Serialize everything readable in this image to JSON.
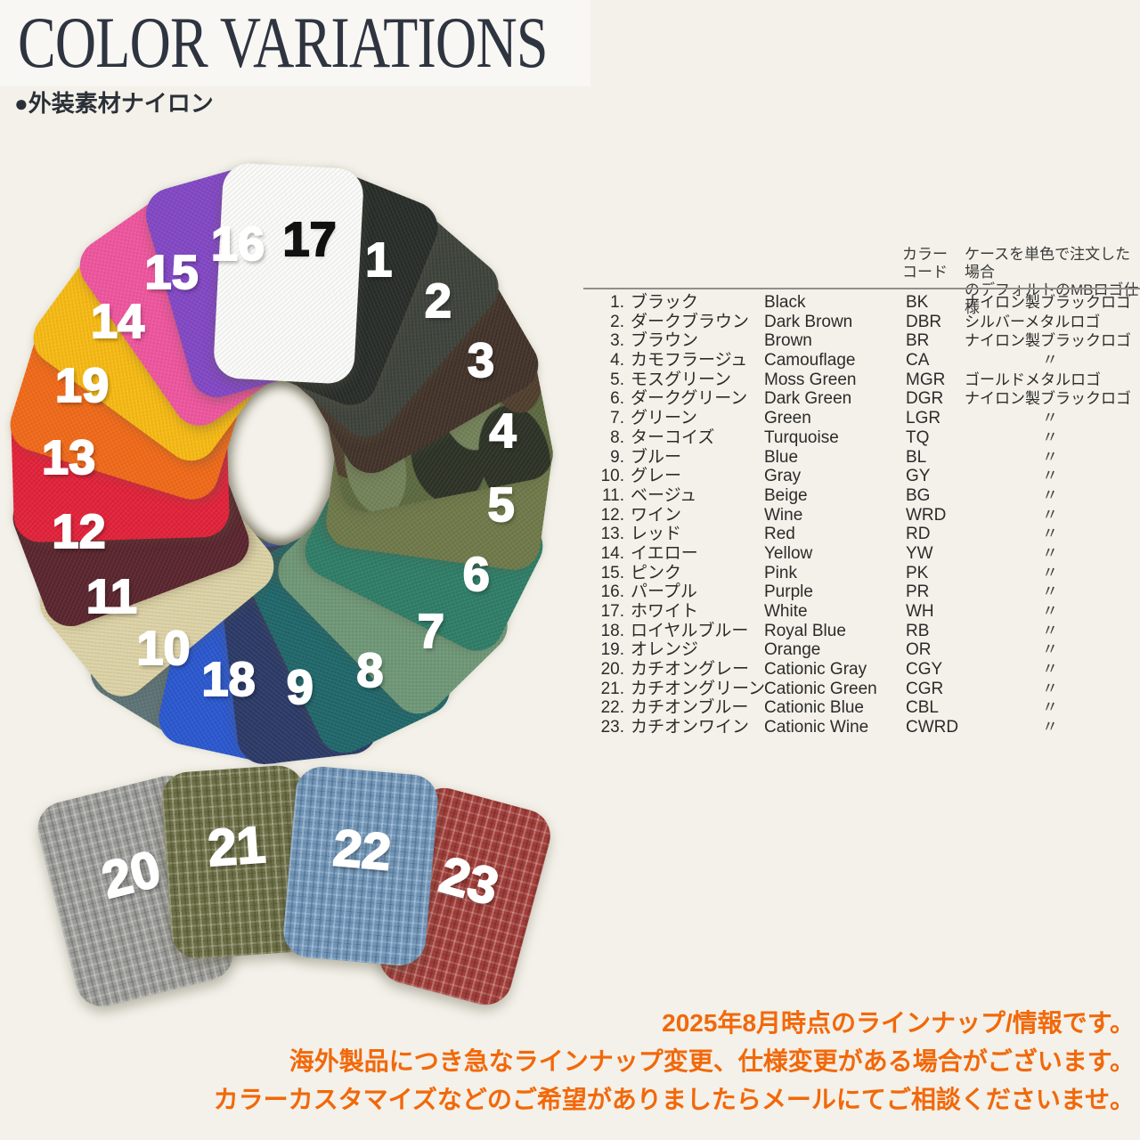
{
  "header": {
    "title": "COLOR VARIATIONS",
    "subtitle": "●外装素材ナイロン",
    "title_color": "#2e3440"
  },
  "wheel": {
    "note": "19 nylon fabric swatches fanned in a ring, clockwise from top",
    "swatches": [
      {
        "num": "17",
        "name_en": "White",
        "color": "#fbfbf9",
        "number_color": "#111111",
        "z": 19
      },
      {
        "num": "1",
        "name_en": "Black",
        "color": "#282d29",
        "z": 18
      },
      {
        "num": "2",
        "name_en": "Dark Brown",
        "color": "#3e433c",
        "z": 17
      },
      {
        "num": "3",
        "name_en": "Brown",
        "color": "#42332a",
        "z": 16
      },
      {
        "num": "4",
        "name_en": "Camouflage",
        "color": "#5c6a40",
        "camo": true,
        "z": 15
      },
      {
        "num": "5",
        "name_en": "Moss Green",
        "color": "#6f7a4a",
        "z": 14
      },
      {
        "num": "6",
        "name_en": "Dark Green",
        "color": "#2f7e68",
        "z": 13
      },
      {
        "num": "7",
        "name_en": "Green",
        "color": "#6f9878",
        "z": 12
      },
      {
        "num": "8",
        "name_en": "Turquoise",
        "color": "#20686b",
        "z": 11
      },
      {
        "num": "9",
        "name_en": "Blue",
        "color": "#2c3a68",
        "z": 10
      },
      {
        "num": "18",
        "name_en": "Royal Blue",
        "color": "#2b58d0",
        "z": 9
      },
      {
        "num": "10",
        "name_en": "Gray",
        "color": "#5e7478",
        "z": 8
      },
      {
        "num": "11",
        "name_en": "Beige",
        "color": "#ded3a7",
        "z": 12
      },
      {
        "num": "12",
        "name_en": "Wine",
        "color": "#5a252e",
        "z": 13
      },
      {
        "num": "13",
        "name_en": "Red",
        "color": "#e3223a",
        "z": 14
      },
      {
        "num": "19",
        "name_en": "Orange",
        "color": "#f26a19",
        "z": 15
      },
      {
        "num": "14",
        "name_en": "Yellow",
        "color": "#f8bb14",
        "z": 16
      },
      {
        "num": "15",
        "name_en": "Pink",
        "color": "#f0569f",
        "z": 17
      },
      {
        "num": "16",
        "name_en": "Purple",
        "color": "#8348c6",
        "z": 18
      }
    ],
    "camo_palette": {
      "base": "#5c6a40",
      "dark": "#2d3226",
      "brown": "#513f2e",
      "light": "#74835a"
    }
  },
  "cationic_swatches": [
    {
      "num": "20",
      "name_en": "Cationic Gray",
      "color": "#9b9c98"
    },
    {
      "num": "21",
      "name_en": "Cationic Green",
      "color": "#6d7046"
    },
    {
      "num": "22",
      "name_en": "Cationic Blue",
      "color": "#7095b8"
    },
    {
      "num": "23",
      "name_en": "Cationic Wine",
      "color": "#a23f3a"
    }
  ],
  "table": {
    "header": {
      "code_col": "カラー\nコード",
      "logo_col": "ケースを単色で注文した場合\nのデフォルトのMBロゴ仕様"
    },
    "rows": [
      {
        "no": "1.",
        "ja": "ブラック",
        "en": "Black",
        "code": "BK",
        "logo": "ナイロン製ブラックロゴ"
      },
      {
        "no": "2.",
        "ja": "ダークブラウン",
        "en": "Dark Brown",
        "code": "DBR",
        "logo": "シルバーメタルロゴ"
      },
      {
        "no": "3.",
        "ja": "ブラウン",
        "en": "Brown",
        "code": "BR",
        "logo": "ナイロン製ブラックロゴ"
      },
      {
        "no": "4.",
        "ja": "カモフラージュ",
        "en": "Camouflage",
        "code": "CA",
        "logo": "〃"
      },
      {
        "no": "5.",
        "ja": "モスグリーン",
        "en": "Moss Green",
        "code": "MGR",
        "logo": "ゴールドメタルロゴ"
      },
      {
        "no": "6.",
        "ja": "ダークグリーン",
        "en": "Dark Green",
        "code": "DGR",
        "logo": "ナイロン製ブラックロゴ"
      },
      {
        "no": "7.",
        "ja": "グリーン",
        "en": "Green",
        "code": "LGR",
        "logo": "〃"
      },
      {
        "no": "8.",
        "ja": "ターコイズ",
        "en": "Turquoise",
        "code": "TQ",
        "logo": "〃"
      },
      {
        "no": "9.",
        "ja": "ブルー",
        "en": "Blue",
        "code": "BL",
        "logo": "〃"
      },
      {
        "no": "10.",
        "ja": "グレー",
        "en": "Gray",
        "code": "GY",
        "logo": "〃"
      },
      {
        "no": "11.",
        "ja": "ベージュ",
        "en": "Beige",
        "code": "BG",
        "logo": "〃"
      },
      {
        "no": "12.",
        "ja": "ワイン",
        "en": "Wine",
        "code": "WRD",
        "logo": "〃"
      },
      {
        "no": "13.",
        "ja": "レッド",
        "en": "Red",
        "code": "RD",
        "logo": "〃"
      },
      {
        "no": "14.",
        "ja": "イエロー",
        "en": "Yellow",
        "code": "YW",
        "logo": "〃"
      },
      {
        "no": "15.",
        "ja": "ピンク",
        "en": "Pink",
        "code": "PK",
        "logo": "〃"
      },
      {
        "no": "16.",
        "ja": "パープル",
        "en": "Purple",
        "code": "PR",
        "logo": "〃"
      },
      {
        "no": "17.",
        "ja": "ホワイト",
        "en": "White",
        "code": "WH",
        "logo": "〃"
      },
      {
        "no": "18.",
        "ja": "ロイヤルブルー",
        "en": "Royal Blue",
        "code": "RB",
        "logo": "〃"
      },
      {
        "no": "19.",
        "ja": "オレンジ",
        "en": "Orange",
        "code": "OR",
        "logo": "〃"
      },
      {
        "no": "20.",
        "ja": "カチオングレー",
        "en": "Cationic Gray",
        "code": "CGY",
        "logo": "〃"
      },
      {
        "no": "21.",
        "ja": "カチオングリーン",
        "en": "Cationic Green",
        "code": "CGR",
        "logo": "〃"
      },
      {
        "no": "22.",
        "ja": "カチオンブルー",
        "en": "Cationic Blue",
        "code": "CBL",
        "logo": "〃"
      },
      {
        "no": "23.",
        "ja": "カチオンワイン",
        "en": "Cationic Wine",
        "code": "CWRD",
        "logo": "〃"
      }
    ]
  },
  "footer": {
    "color": "#f2680a",
    "lines": [
      "2025年8月時点のラインナップ/情報です。",
      "海外製品につき急なラインナップ変更、仕様変更がある場合がございます。",
      "カラーカスタマイズなどのご希望がありましたらメールにてご相談くださいませ。"
    ]
  }
}
